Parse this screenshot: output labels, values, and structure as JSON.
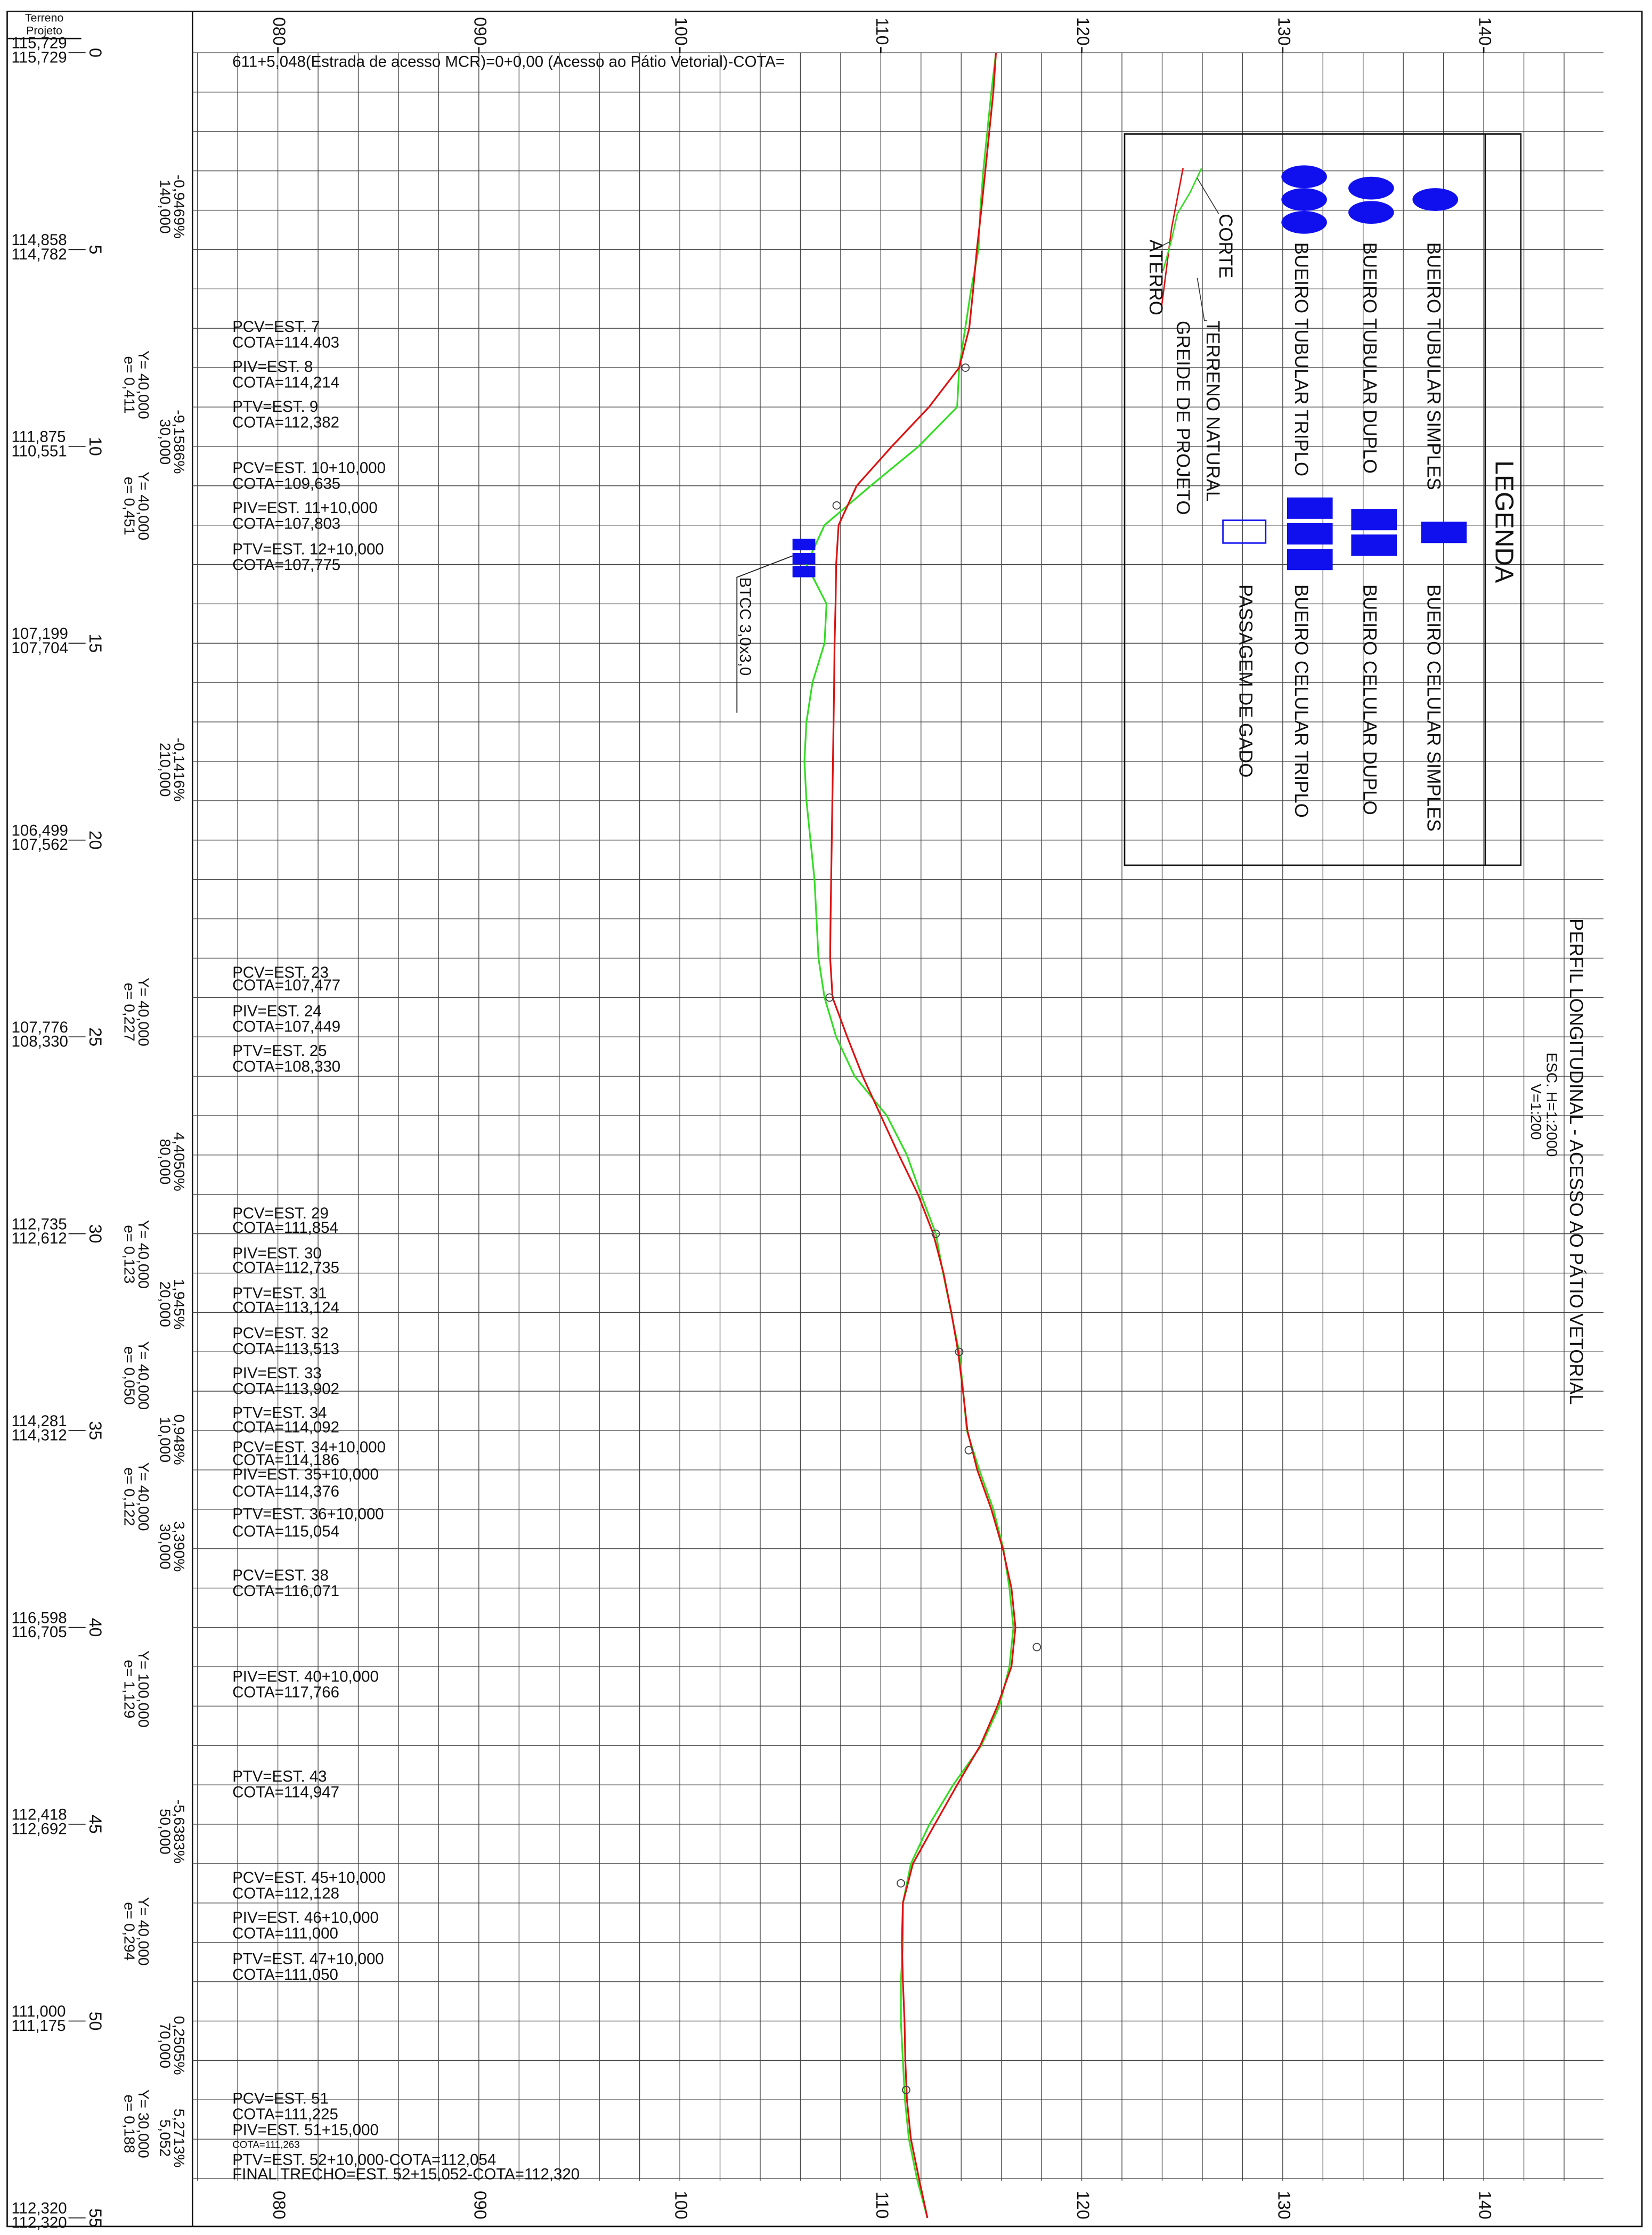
{
  "chart_data": {
    "type": "line",
    "title": "PERFIL LONGITUDINAL - ACESSO AO PÁTIO VETORIAL",
    "scale_h": "ESC. H=1:2000",
    "scale_v": "V=1:200",
    "x": [
      0,
      1,
      2,
      3,
      4,
      5,
      6,
      7,
      8,
      9,
      10,
      11,
      12,
      13,
      14,
      15,
      16,
      17,
      18,
      19,
      20,
      21,
      22,
      23,
      24,
      25,
      26,
      27,
      28,
      29,
      30,
      31,
      32,
      33,
      34,
      35,
      36,
      37,
      38,
      39,
      40,
      41,
      42,
      43,
      44,
      45,
      46,
      47,
      48,
      49,
      50,
      51,
      52,
      53,
      54,
      55
    ],
    "series": [
      {
        "name": "TERRENO NATURAL",
        "color": "#33dd22",
        "values": [
          115.73,
          115.5,
          115.3,
          115.1,
          114.95,
          114.86,
          114.5,
          114.2,
          113.9,
          113.8,
          111.88,
          109.5,
          107.2,
          106.3,
          107.3,
          107.2,
          106.6,
          106.3,
          106.2,
          106.3,
          106.5,
          106.7,
          106.8,
          106.9,
          107.2,
          107.78,
          108.7,
          110.3,
          111.3,
          112.0,
          112.74,
          113.1,
          113.5,
          113.9,
          114.1,
          114.28,
          114.9,
          115.6,
          116.1,
          116.4,
          116.6,
          116.4,
          115.9,
          115.0,
          113.6,
          112.42,
          111.5,
          111.1,
          111.1,
          111.0,
          111.0,
          111.1,
          111.2,
          111.4,
          111.8,
          112.32
        ]
      },
      {
        "name": "GREIDE DE PROJETO",
        "color": "#e01010",
        "values": [
          115.73,
          115.6,
          115.4,
          115.2,
          115.0,
          114.78,
          114.6,
          114.4,
          113.9,
          112.4,
          110.55,
          108.8,
          107.9,
          107.78,
          107.75,
          107.7,
          107.68,
          107.65,
          107.62,
          107.59,
          107.56,
          107.53,
          107.5,
          107.48,
          107.6,
          108.33,
          109.1,
          110.0,
          110.9,
          111.85,
          112.61,
          113.12,
          113.51,
          113.85,
          114.09,
          114.31,
          114.8,
          115.5,
          116.07,
          116.5,
          116.7,
          116.5,
          115.8,
          114.95,
          113.8,
          112.69,
          111.6,
          111.1,
          111.05,
          111.1,
          111.18,
          111.22,
          111.3,
          111.5,
          111.9,
          112.32
        ]
      }
    ],
    "piv_points": {
      "x": [
        8,
        11.5,
        24,
        30,
        33,
        35.5,
        40.5,
        46.5,
        51.75
      ],
      "values": [
        114.214,
        107.803,
        107.449,
        112.735,
        113.902,
        114.376,
        117.766,
        111.0,
        111.263
      ]
    },
    "xlim": [
      0,
      55
    ],
    "xticks": [
      0,
      5,
      10,
      15,
      20,
      25,
      30,
      35,
      40,
      45,
      50,
      55
    ],
    "ylim": [
      75.75,
      145.96
    ],
    "yticks": [
      {
        "value": 80,
        "label": "080"
      },
      {
        "value": 90,
        "label": "090"
      },
      100,
      110,
      120,
      130,
      140
    ],
    "grid": {
      "x_step": 1,
      "y_step": 2
    },
    "elevation_table": {
      "header": [
        "Terreno",
        "Projeto"
      ],
      "rows": [
        [
          "115,729",
          "115,729"
        ],
        [
          "114,858",
          "114,782"
        ],
        [
          "111,875",
          "110,551"
        ],
        [
          "107,199",
          "107,704"
        ],
        [
          "106,499",
          "107,562"
        ],
        [
          "107,776",
          "108,330"
        ],
        [
          "112,735",
          "112,612"
        ],
        [
          "114,281",
          "114,312"
        ],
        [
          "116,598",
          "116,705"
        ],
        [
          "112,418",
          "112,692"
        ],
        [
          "111,000",
          "111,175"
        ],
        [
          "112,320",
          "112,320"
        ]
      ]
    },
    "grades": [
      [
        "-0,9469%",
        "140,000"
      ],
      [
        "-9,1586%",
        "30,000"
      ],
      [
        "-0,1416%",
        "210,000"
      ],
      [
        "4,4050%",
        "80,000"
      ],
      [
        "1,945%",
        "20,000"
      ],
      [
        "0,948%",
        "10,000"
      ],
      [
        "3,390%",
        "30,000"
      ],
      [
        "-5,6383%",
        "50,000"
      ],
      [
        "0,2505%",
        "70,000"
      ],
      [
        "5,2713%",
        "5,052"
      ]
    ],
    "vertical_curves": [
      [
        "Y= 40,000",
        "e= 0,411"
      ],
      [
        "Y= 40,000",
        "e= 0,451"
      ],
      [
        "Y= 40,000",
        "e= 0,227"
      ],
      [
        "Y= 40,000",
        "e= 0,123"
      ],
      [
        "Y= 40,000",
        "e= 0,050"
      ],
      [
        "Y= 40,000",
        "e= 0,122"
      ],
      [
        "Y= 100,000",
        "e= 1,129"
      ],
      [
        "Y= 40,000",
        "e= 0,294"
      ],
      [
        "Y= 30,000",
        "e= 0,188"
      ]
    ],
    "annotations": [
      "611+5,048(Estrada de acesso MCR)=0+0,00 (Acesso ao Pátio Vetorial)-COTA=",
      "PCV=EST. 7",
      "COTA=114.403",
      "PIV=EST. 8",
      "COTA=114,214",
      "PTV=EST. 9",
      "COTA=112,382",
      "PCV=EST. 10+10,000",
      "COTA=109,635",
      "PIV=EST. 11+10,000",
      "COTA=107,803",
      "PTV=EST. 12+10,000",
      "COTA=107,775",
      "PCV=EST. 23",
      "COTA=107,477",
      "PIV=EST. 24",
      "COTA=107,449",
      "PTV=EST. 25",
      "COTA=108,330",
      "PCV=EST. 29",
      "COTA=111,854",
      "PIV=EST. 30",
      "COTA=112,735",
      "PTV=EST. 31",
      "COTA=113,124",
      "PCV=EST. 32",
      "COTA=113,513",
      "PIV=EST. 33",
      "COTA=113,902",
      "PTV=EST. 34",
      "COTA=114,092",
      "PCV=EST. 34+10,000",
      "COTA=114,186",
      "PIV=EST. 35+10,000",
      "COTA=114,376",
      "PTV=EST. 36+10,000",
      "COTA=115,054",
      "PCV=EST. 38",
      "COTA=116,071",
      "PIV=EST. 40+10,000",
      "COTA=117,766",
      "PTV=EST. 43",
      "COTA=114,947",
      "PCV=EST. 45+10,000",
      "COTA=112,128",
      "PIV=EST. 46+10,000",
      "COTA=111,000",
      "PTV=EST. 47+10,000",
      "COTA=111,050",
      "PCV=EST. 51",
      "COTA=111,225",
      "PIV=EST. 51+15,000",
      "COTA=111,263",
      "PTV=EST. 52+10,000-COTA=112,054",
      "FINAL TRECHO=EST. 52+15,052-COTA=112,320"
    ],
    "culvert_label": "BTCC 3,0x3,0",
    "legend": {
      "title": "LEGENDA",
      "items": [
        "BUEIRO TUBULAR SIMPLES",
        "BUEIRO TUBULAR DUPLO",
        "BUEIRO TUBULAR TRIPLO",
        "BUEIRO CELULAR SIMPLES",
        "BUEIRO CELULAR DUPLO",
        "BUEIRO CELULAR TRIPLO",
        "PASSAGEM DE GADO"
      ],
      "cut": "CORTE",
      "fill": "ATERRO"
    }
  }
}
